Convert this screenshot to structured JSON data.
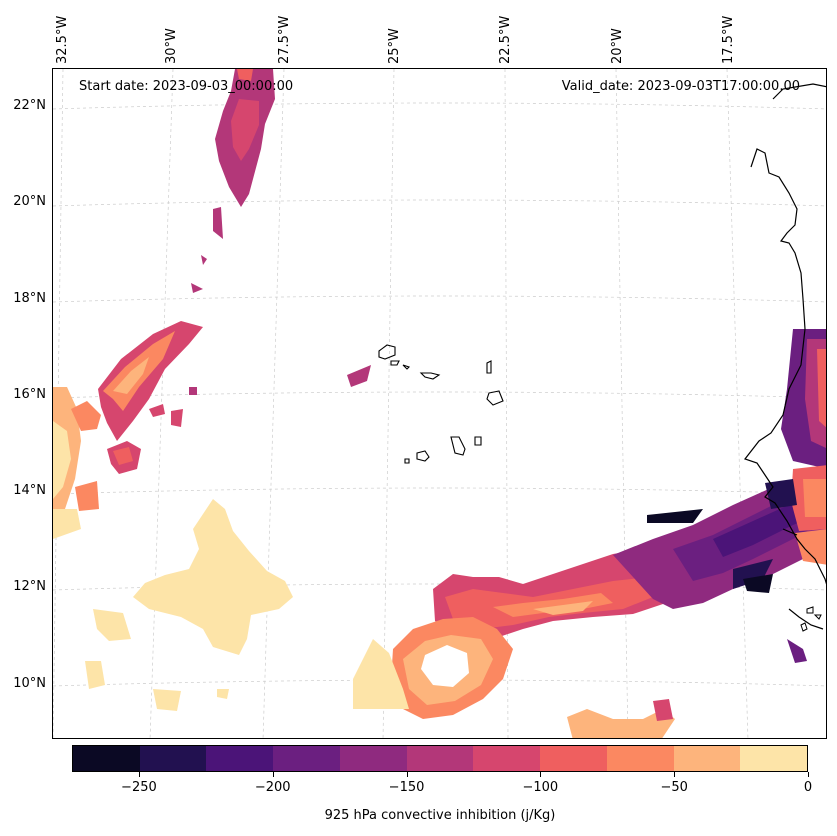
{
  "map": {
    "start_date": "Start date: 2023-09-03_00:00:00",
    "valid_date": "Valid_date: 2023-09-03T17:00:00.00",
    "lon_labels": [
      "32.5°W",
      "30°W",
      "27.5°W",
      "25°W",
      "22.5°W",
      "20°W",
      "17.5°W"
    ],
    "lat_labels": [
      "22°N",
      "20°N",
      "18°N",
      "16°N",
      "14°N",
      "12°N",
      "10°N"
    ],
    "features": [
      "cape-verde-islands",
      "west-africa-coastline"
    ]
  },
  "colorbar": {
    "label": "925 hPa convective inhibition (j/Kg)",
    "ticks": [
      "−250",
      "−200",
      "−150",
      "−100",
      "−50",
      "0"
    ],
    "range": [
      -275,
      0
    ],
    "levels": [
      -275,
      -250,
      -225,
      -200,
      -175,
      -150,
      -125,
      -100,
      -75,
      -50,
      -25,
      0
    ],
    "colors": [
      "#0b0924",
      "#221150",
      "#4b1478",
      "#6b1f80",
      "#8f2a7f",
      "#b33779",
      "#d6466e",
      "#ef5f5f",
      "#fb8861",
      "#fdb47c",
      "#fde4a8"
    ],
    "colormap": "magma"
  }
}
